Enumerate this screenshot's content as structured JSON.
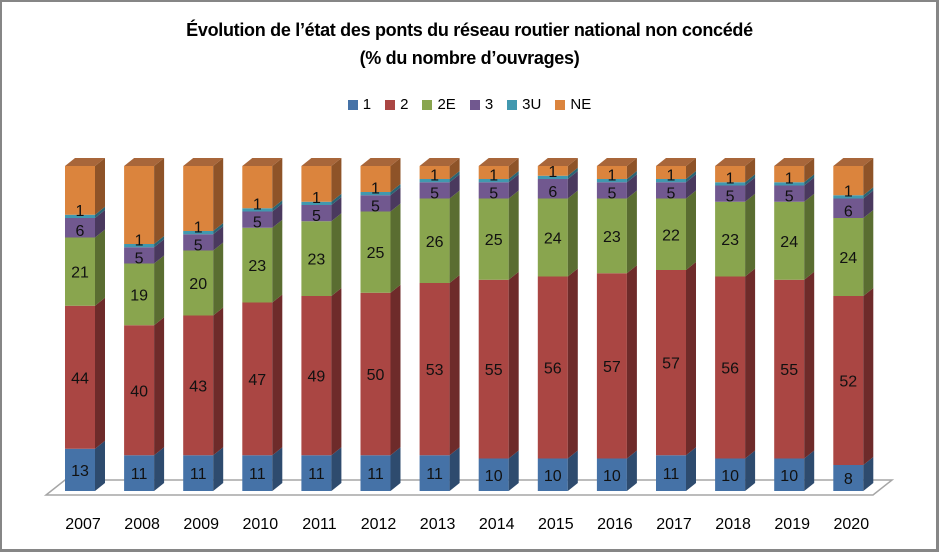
{
  "chart_data": {
    "type": "bar",
    "stacked": true,
    "three_d": true,
    "title": "Évolution de l’état des ponts du réseau routier national non concédé",
    "subtitle": "(% du nombre d’ouvrages)",
    "xlabel": "",
    "ylabel": "",
    "ylim": [
      0,
      100
    ],
    "grid": false,
    "legend_position": "top",
    "categories": [
      "2007",
      "2008",
      "2009",
      "2010",
      "2011",
      "2012",
      "2013",
      "2014",
      "2015",
      "2016",
      "2017",
      "2018",
      "2019",
      "2020"
    ],
    "series": [
      {
        "name": "1",
        "color": "#4572A7",
        "side": "#2E4B6E",
        "top": "#5B86BA",
        "labeled": true,
        "values": [
          13,
          11,
          11,
          11,
          11,
          11,
          11,
          10,
          10,
          10,
          11,
          10,
          10,
          8
        ]
      },
      {
        "name": "2",
        "color": "#AA4643",
        "side": "#6E2B2A",
        "top": "#BE5B58",
        "labeled": true,
        "values": [
          44,
          40,
          43,
          47,
          49,
          50,
          53,
          55,
          56,
          57,
          57,
          56,
          55,
          52
        ]
      },
      {
        "name": "2E",
        "color": "#89A54E",
        "side": "#5A6D31",
        "top": "#9CB862",
        "labeled": true,
        "values": [
          21,
          19,
          20,
          23,
          23,
          25,
          26,
          25,
          24,
          23,
          22,
          23,
          24,
          24
        ]
      },
      {
        "name": "3",
        "color": "#71588F",
        "side": "#4A395E",
        "top": "#846CA2",
        "labeled": true,
        "values": [
          6,
          5,
          5,
          5,
          5,
          5,
          5,
          5,
          6,
          5,
          5,
          5,
          5,
          6
        ]
      },
      {
        "name": "3U",
        "color": "#4198AF",
        "side": "#2A6473",
        "top": "#57ABC2",
        "labeled": true,
        "values": [
          1,
          1,
          1,
          1,
          1,
          1,
          1,
          1,
          1,
          1,
          1,
          1,
          1,
          1
        ]
      },
      {
        "name": "NE",
        "color": "#DB843D",
        "side": "#8E5328",
        "top": "#A8663A",
        "labeled": false,
        "values": [
          15,
          24,
          20,
          13,
          11,
          8,
          4,
          4,
          3,
          4,
          4,
          5,
          5,
          9
        ]
      }
    ]
  }
}
